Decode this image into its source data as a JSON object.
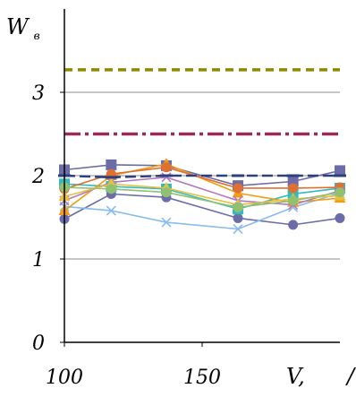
{
  "chart_data": {
    "type": "line",
    "title": "",
    "xlabel": "V,",
    "xlabel_unit": "/",
    "ylabel": "W",
    "ylabel_sub": "в",
    "xlim": [
      100,
      200
    ],
    "ylim": [
      0,
      4
    ],
    "xticks": [
      "100",
      "150"
    ],
    "yticks": [
      "0",
      "1",
      "2",
      "3"
    ],
    "grid": "horizontal",
    "x": [
      100,
      117,
      137,
      163,
      183,
      200
    ],
    "series": [
      {
        "color": "#6c6ca8",
        "marker": "square",
        "values": [
          2.07,
          2.13,
          2.12,
          1.88,
          1.93,
          2.06
        ]
      },
      {
        "color": "#6c6ca8",
        "marker": "circle",
        "values": [
          1.48,
          1.78,
          1.74,
          1.49,
          1.41,
          1.49
        ]
      },
      {
        "color": "#88bbee",
        "marker": "x",
        "values": [
          1.63,
          1.58,
          1.44,
          1.36,
          1.62,
          1.79
        ]
      },
      {
        "color": "#33bbbb",
        "marker": "square",
        "values": [
          1.9,
          1.87,
          1.84,
          1.6,
          1.78,
          1.85
        ]
      },
      {
        "color": "#f39c12",
        "marker": "triangle",
        "values": [
          1.58,
          2.0,
          2.14,
          1.79,
          1.68,
          1.73
        ]
      },
      {
        "color": "#e07030",
        "marker": "circle",
        "values": [
          1.84,
          2.02,
          2.1,
          1.85,
          1.85,
          1.86
        ]
      },
      {
        "color": "#b07ac0",
        "marker": "x",
        "values": [
          1.7,
          1.92,
          1.98,
          1.7,
          1.65,
          1.82
        ]
      },
      {
        "color": "#e8c040",
        "marker": "triangle",
        "values": [
          1.75,
          1.9,
          1.85,
          1.65,
          1.72,
          1.76
        ]
      },
      {
        "color": "#90c070",
        "marker": "circle",
        "values": [
          1.86,
          1.84,
          1.8,
          1.62,
          1.7,
          1.8
        ]
      },
      {
        "color": "#2c4080",
        "marker": "dash",
        "values": [
          2.0,
          1.98,
          2.0,
          2.0,
          2.0,
          2.0
        ]
      }
    ],
    "reference_lines": [
      {
        "value": 3.27,
        "color": "#8b8b00",
        "style": "dashed"
      },
      {
        "value": 2.5,
        "color": "#9b2a5a",
        "style": "dashdot"
      }
    ]
  }
}
